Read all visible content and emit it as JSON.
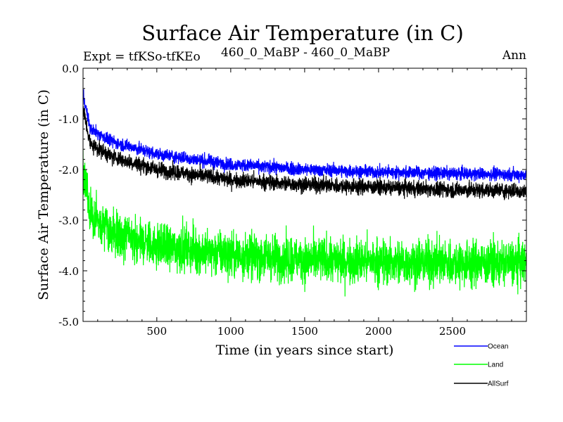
{
  "chart_data": {
    "type": "line",
    "title": "Surface Air Temperature (in C)",
    "subtitle_left": "Expt = tfKSo-tfKEo",
    "subtitle_center": "460_0_MaBP - 460_0_MaBP",
    "subtitle_right": "Ann",
    "xlabel": "Time (in years since start)",
    "ylabel": "Surface Air Temperature (in C)",
    "xlim": [
      1,
      3000
    ],
    "ylim": [
      -5.0,
      0.0
    ],
    "x_ticks": [
      500,
      1000,
      1500,
      2000,
      2500
    ],
    "x_tick_labels": [
      "500",
      "1000",
      "1500",
      "2000",
      "2500"
    ],
    "y_ticks": [
      0.0,
      -1.0,
      -2.0,
      -3.0,
      -4.0,
      -5.0
    ],
    "y_tick_labels": [
      "0.0",
      "-1.0",
      "-2.0",
      "-3.0",
      "-4.0",
      "-5.0"
    ],
    "legend_position": "bottom-right, below plot",
    "series": [
      {
        "name": "Ocean",
        "color": "#0000ff",
        "trend": {
          "x": [
            1,
            50,
            200,
            500,
            1000,
            1500,
            2000,
            2500,
            3000
          ],
          "y": [
            -0.5,
            -1.2,
            -1.45,
            -1.7,
            -1.9,
            -2.0,
            -2.05,
            -2.08,
            -2.1
          ]
        },
        "noise_amplitude": 0.09
      },
      {
        "name": "Land",
        "color": "#00ff00",
        "trend": {
          "x": [
            1,
            50,
            200,
            500,
            1000,
            1500,
            2000,
            2500,
            3000
          ],
          "y": [
            -1.9,
            -2.9,
            -3.25,
            -3.5,
            -3.68,
            -3.78,
            -3.82,
            -3.85,
            -3.85
          ]
        },
        "noise_amplitude": 0.32
      },
      {
        "name": "AllSurf",
        "color": "#000000",
        "trend": {
          "x": [
            1,
            50,
            200,
            500,
            1000,
            1500,
            2000,
            2500,
            3000
          ],
          "y": [
            -0.8,
            -1.5,
            -1.75,
            -2.0,
            -2.2,
            -2.3,
            -2.35,
            -2.4,
            -2.43
          ]
        },
        "noise_amplitude": 0.11
      }
    ]
  }
}
